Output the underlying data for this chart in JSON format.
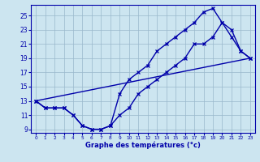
{
  "xlabel": "Graphe des températures (°c)",
  "xlim": [
    -0.5,
    23.5
  ],
  "ylim": [
    8.5,
    26.5
  ],
  "yticks": [
    9,
    11,
    13,
    15,
    17,
    19,
    21,
    23,
    25
  ],
  "xticks": [
    0,
    1,
    2,
    3,
    4,
    5,
    6,
    7,
    8,
    9,
    10,
    11,
    12,
    13,
    14,
    15,
    16,
    17,
    18,
    19,
    20,
    21,
    22,
    23
  ],
  "bg_color": "#cce5f0",
  "line_color": "#0000aa",
  "grid_color": "#99b8cc",
  "line1_y": [
    13,
    12,
    12,
    12,
    11,
    9.5,
    9,
    9,
    9.5,
    11,
    12,
    14,
    15,
    16,
    17,
    18,
    19,
    21,
    21,
    22,
    24,
    23,
    20,
    19
  ],
  "line2_y": [
    13,
    12,
    12,
    12,
    11,
    9.5,
    9,
    9,
    9.5,
    14,
    16,
    17,
    18,
    20,
    21,
    22,
    23,
    24,
    25.5,
    26,
    24,
    22,
    20,
    19
  ],
  "line3_x": [
    0,
    23
  ],
  "line3_y": [
    13,
    19
  ]
}
